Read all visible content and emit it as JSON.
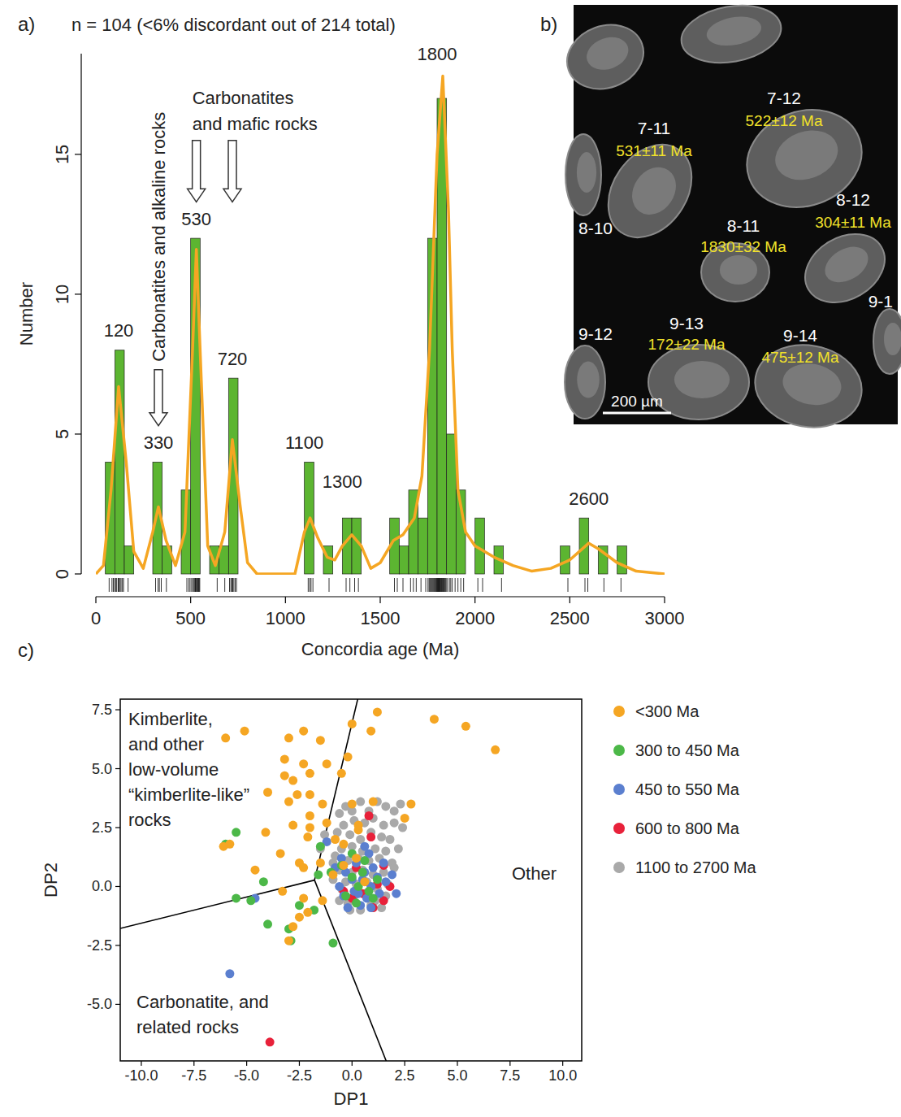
{
  "chart_data": [
    {
      "type": "histogram",
      "panel_label": "a)",
      "title": "n = 104 (<6% discordant out of 214 total)",
      "x_label": "Concordia age (Ma)",
      "y_label": "Number",
      "bins": [
        0,
        50,
        100,
        150,
        200,
        250,
        300,
        350,
        400,
        450,
        500,
        550,
        600,
        650,
        700,
        750,
        800,
        850,
        900,
        950,
        1000,
        1050,
        1100,
        1150,
        1200,
        1250,
        1300,
        1350,
        1400,
        1450,
        1500,
        1550,
        1600,
        1650,
        1700,
        1750,
        1800,
        1850,
        1900,
        1950,
        2000,
        2050,
        2100,
        2150,
        2200,
        2250,
        2300,
        2350,
        2400,
        2450,
        2500,
        2550,
        2600,
        2650,
        2700,
        2750,
        2800,
        2850,
        2900,
        2950,
        3000
      ],
      "counts": [
        0,
        4,
        8,
        1,
        0,
        0,
        4,
        1,
        0,
        3,
        12,
        0,
        1,
        1,
        7,
        0,
        0,
        0,
        0,
        0,
        0,
        0,
        4,
        0,
        1,
        0,
        2,
        2,
        0,
        0,
        0,
        2,
        1,
        3,
        2,
        12,
        17,
        5,
        3,
        0,
        2,
        0,
        1,
        0,
        0,
        0,
        0,
        0,
        0,
        1,
        0,
        2,
        0,
        1,
        0,
        1,
        0,
        0,
        0,
        0
      ],
      "color": "#5cb531",
      "density_curve": {
        "color": "#f5a623",
        "x": [
          0,
          40,
          80,
          120,
          160,
          200,
          250,
          300,
          330,
          370,
          420,
          470,
          510,
          530,
          550,
          590,
          630,
          680,
          720,
          760,
          800,
          850,
          1050,
          1100,
          1130,
          1170,
          1220,
          1260,
          1300,
          1350,
          1400,
          1450,
          1500,
          1570,
          1620,
          1680,
          1720,
          1760,
          1800,
          1830,
          1860,
          1880,
          1910,
          1950,
          2000,
          2100,
          2200,
          2300,
          2400,
          2500,
          2600,
          2650,
          2750,
          2850,
          3000
        ],
        "values": [
          0,
          0.3,
          3,
          6.7,
          4,
          0.8,
          0.2,
          1.5,
          2.4,
          1.2,
          0.3,
          1.5,
          8,
          11.6,
          8,
          1,
          0.3,
          1.5,
          4.8,
          2.5,
          0.4,
          0,
          0,
          1.5,
          2,
          1.3,
          0.6,
          0.5,
          1,
          1.4,
          1,
          0.2,
          0.4,
          1.2,
          1.4,
          2,
          3.5,
          8,
          15,
          17.8,
          13,
          8,
          3,
          1.5,
          1,
          0.6,
          0.3,
          0.1,
          0.2,
          0.5,
          1.1,
          0.9,
          0.4,
          0.1,
          0
        ]
      },
      "rug": [
        70,
        85,
        92,
        98,
        105,
        110,
        118,
        122,
        128,
        133,
        140,
        146,
        170,
        315,
        328,
        335,
        345,
        372,
        480,
        490,
        497,
        505,
        512,
        518,
        522,
        525,
        528,
        531,
        535,
        538,
        542,
        545,
        548,
        640,
        680,
        705,
        712,
        718,
        722,
        728,
        735,
        742,
        1120,
        1128,
        1135,
        1145,
        1230,
        1320,
        1340,
        1365,
        1385,
        1575,
        1590,
        1620,
        1660,
        1675,
        1690,
        1715,
        1740,
        1752,
        1758,
        1762,
        1766,
        1770,
        1774,
        1778,
        1782,
        1786,
        1790,
        1794,
        1798,
        1801,
        1803,
        1806,
        1808,
        1811,
        1813,
        1816,
        1818,
        1821,
        1824,
        1827,
        1830,
        1833,
        1836,
        1840,
        1844,
        1848,
        1855,
        1865,
        1872,
        1880,
        1895,
        1910,
        1925,
        1940,
        2015,
        2040,
        2140,
        2490,
        2580,
        2595,
        2680,
        2770
      ],
      "peaks": [
        120,
        330,
        530,
        720,
        1100,
        1300,
        1800,
        2600
      ],
      "peak_heights": [
        8.3,
        4.3,
        12.3,
        7.3,
        4.3,
        2.9,
        18.2,
        2.3
      ],
      "annotations": [
        {
          "text": [
            "Carbonatites and alkaline rocks"
          ],
          "x": [
            330
          ],
          "y": [
            7.3,
            5.3
          ]
        },
        {
          "text": [
            "Carbonatites",
            "and mafic rocks"
          ],
          "x": [
            530,
            720
          ],
          "y": [
            15.5,
            13.3
          ]
        }
      ],
      "xlim": [
        0,
        3000
      ],
      "ylim": [
        0,
        18.6
      ],
      "xticks": [
        0,
        500,
        1000,
        1500,
        2000,
        2500,
        3000
      ],
      "yticks": [
        0,
        5,
        10,
        15
      ]
    },
    {
      "type": "scatter",
      "panel_label": "c)",
      "x_label": "DP1",
      "y_label": "DP2",
      "marker": "circle",
      "legend": "right",
      "xlim": [
        -11,
        10.9
      ],
      "ylim": [
        -7.4,
        7.95
      ],
      "xticks": [
        {
          "value": -10,
          "label": "-10.0"
        },
        {
          "value": -7.5,
          "label": "-7.5"
        },
        {
          "value": -5,
          "label": "-5.0"
        },
        {
          "value": -2.5,
          "label": "-2.5"
        },
        {
          "value": 0,
          "label": "0.0"
        },
        {
          "value": 2.5,
          "label": "2.5"
        },
        {
          "value": 5,
          "label": "5.0"
        },
        {
          "value": 7.5,
          "label": "7.5"
        },
        {
          "value": 10,
          "label": "10.0"
        }
      ],
      "yticks": [
        {
          "value": -5,
          "label": "-5.0"
        },
        {
          "value": -2.5,
          "label": "-2.5"
        },
        {
          "value": 0,
          "label": "0.0"
        },
        {
          "value": 2.5,
          "label": "2.5"
        },
        {
          "value": 5,
          "label": "5.0"
        },
        {
          "value": 7.5,
          "label": "7.5"
        }
      ],
      "regions": [
        {
          "label": [
            "Kimberlite,",
            "and other",
            "low-volume",
            "“kimberlite-like”",
            "rocks"
          ]
        },
        {
          "label": [
            "Other"
          ]
        },
        {
          "label": [
            "Carbonatite, and",
            "related rocks"
          ]
        }
      ],
      "boundaries": {
        "center": [
          -1.78,
          0.27
        ],
        "ends": [
          [
            0.27,
            7.95
          ],
          [
            -11,
            -1.78
          ],
          [
            1.62,
            -7.4
          ]
        ]
      },
      "series": [
        {
          "name": "<300 Ma",
          "color": "#f5a623",
          "x": [
            -6.0,
            -5.1,
            -3.0,
            -2.3,
            -1.5,
            -3.2,
            -2.3,
            -1.2,
            -3.2,
            -2.8,
            -2.0,
            -0.5,
            -2.6,
            -4.0,
            -3.0,
            -2.0,
            -1.4,
            -2.0,
            -2.8,
            -2.0,
            -1.2,
            -5.8,
            -4.1,
            -2.1,
            -0.8,
            -0.4,
            -6.1,
            -4.6,
            -3.4,
            -2.5,
            -2.3,
            -1.5,
            -3.3,
            -2.3,
            -2.1,
            -2.5,
            -2.8,
            -3.0,
            -1.4,
            0.0,
            1.2,
            0.9,
            -0.2,
            3.9,
            5.4,
            6.8,
            2.8,
            0.0,
            1.0,
            0.3,
            -0.4,
            0.6,
            2.5,
            0.2,
            -0.9,
            0.3
          ],
          "values": [
            6.3,
            6.6,
            6.3,
            6.6,
            6.2,
            5.4,
            5.2,
            5.2,
            4.7,
            4.5,
            4.8,
            4.8,
            3.9,
            4.0,
            3.6,
            3.9,
            3.5,
            3.0,
            2.6,
            2.5,
            2.7,
            1.8,
            2.3,
            2.1,
            2.0,
            1.8,
            1.7,
            0.7,
            1.4,
            1.0,
            0.8,
            1.0,
            -0.2,
            -0.5,
            -1.1,
            -1.3,
            -1.7,
            -2.3,
            -0.6,
            6.9,
            7.4,
            6.6,
            5.5,
            7.1,
            6.8,
            5.8,
            3.5,
            3.5,
            3.6,
            2.4,
            0.9,
            0.2,
            2.9,
            1.2,
            0.5,
            2.6
          ]
        },
        {
          "name": "300 to 450 Ma",
          "color": "#4cb848",
          "x": [
            -5.5,
            -6.0,
            -4.2,
            -4.8,
            -4.0,
            -3.0,
            -2.9,
            -5.5,
            -2.5,
            -1.5,
            -1.6,
            -0.9,
            -0.5,
            0.0,
            0.3,
            0.5,
            -0.3,
            0.8,
            1.0,
            1.2,
            0.0,
            0.6,
            -1.0,
            -1.8,
            0.2
          ],
          "values": [
            2.3,
            1.8,
            0.2,
            -0.6,
            -1.6,
            -1.8,
            -2.3,
            -0.5,
            -0.8,
            1.7,
            0.5,
            -2.4,
            0.9,
            0.4,
            0.0,
            0.6,
            -0.4,
            -0.2,
            -0.5,
            0.3,
            1.4,
            1.1,
            0.6,
            -1.0,
            -0.7
          ]
        },
        {
          "name": "450 to 550 Ma",
          "color": "#5b7fcf",
          "x": [
            -5.8,
            -4.6,
            -1.2,
            -0.5,
            0.2,
            0.6,
            0.8,
            -0.6,
            0.0,
            0.3,
            0.9,
            1.3,
            -0.2,
            0.4,
            1.9,
            2.1,
            0.5,
            -0.8,
            1.0,
            1.5,
            -0.3,
            0.7,
            1.2,
            0.1,
            0.6,
            -0.4,
            1.6,
            0.9
          ],
          "values": [
            -3.7,
            -0.5,
            1.9,
            1.2,
            1.0,
            0.6,
            1.4,
            0.0,
            0.3,
            -0.3,
            0.0,
            -0.3,
            -0.9,
            -0.8,
            0.5,
            -0.3,
            0.3,
            0.8,
            0.8,
            1.0,
            0.6,
            -0.5,
            0.4,
            -0.2,
            1.7,
            -0.4,
            0.2,
            -0.9
          ]
        },
        {
          "name": "600 to 800 Ma",
          "color": "#e8213a",
          "x": [
            -3.9,
            0.8,
            0.9,
            0.2,
            1.2,
            0.0,
            1.0,
            1.5,
            -0.4,
            1.8,
            0.5,
            1.5
          ],
          "values": [
            -6.6,
            3.0,
            2.1,
            0.8,
            0.1,
            -0.5,
            -0.9,
            -0.6,
            -0.2,
            0.0,
            -0.3,
            0.9
          ]
        },
        {
          "name": "1100 to 2700 Ma",
          "color": "#a9a9a9",
          "x": [
            -1.5,
            -1.3,
            -0.9,
            -0.6,
            -0.3,
            0.0,
            0.4,
            0.8,
            1.2,
            1.6,
            2.0,
            2.3,
            -0.4,
            0.1,
            0.6,
            1.0,
            1.5,
            2.0,
            2.4,
            -0.7,
            -0.1,
            0.4,
            0.9,
            1.4,
            1.8,
            -0.5,
            0.0,
            0.5,
            1.1,
            1.6,
            2.2,
            -0.8,
            -0.2,
            0.3,
            0.8,
            1.3,
            1.9,
            -0.6,
            0.0,
            0.5,
            1.0,
            1.5,
            2.0,
            -0.9,
            -0.3,
            0.2,
            0.7,
            1.2,
            1.7,
            -0.5,
            0.1,
            0.6,
            1.1,
            1.6,
            -0.2,
            0.4,
            0.9,
            -0.6,
            -0.1,
            1.4
          ],
          "values": [
            1.6,
            2.2,
            1.0,
            3.1,
            3.4,
            3.2,
            3.6,
            3.2,
            3.6,
            3.4,
            3.2,
            3.5,
            2.6,
            2.8,
            2.7,
            2.9,
            2.6,
            2.7,
            2.5,
            2.3,
            2.2,
            2.0,
            2.3,
            2.1,
            2.0,
            1.6,
            1.7,
            1.5,
            1.6,
            1.5,
            1.6,
            1.3,
            1.1,
            1.2,
            1.1,
            1.2,
            1.0,
            0.7,
            0.6,
            0.7,
            0.5,
            0.6,
            0.8,
            0.3,
            0.2,
            0.1,
            0.2,
            -0.1,
            0.1,
            -0.1,
            -0.4,
            -0.3,
            -0.6,
            -0.4,
            -0.7,
            -1.0,
            -0.8,
            -0.6,
            -1.0,
            -0.9
          ]
        }
      ]
    }
  ],
  "image_panel": {
    "panel_label": "b)",
    "grains": [
      {
        "id": "7-11",
        "age": "531±11 Ma"
      },
      {
        "id": "7-12",
        "age": "522±12 Ma"
      },
      {
        "id": "8-10"
      },
      {
        "id": "8-11",
        "age": "1830±32 Ma"
      },
      {
        "id": "8-12",
        "age": "304±11 Ma"
      },
      {
        "id": "9-12"
      },
      {
        "id": "9-13",
        "age": "172±22 Ma"
      },
      {
        "id": "9-14",
        "age": "475±12 Ma"
      },
      {
        "id": "9-1"
      }
    ],
    "scale_bar": "200 µm"
  }
}
